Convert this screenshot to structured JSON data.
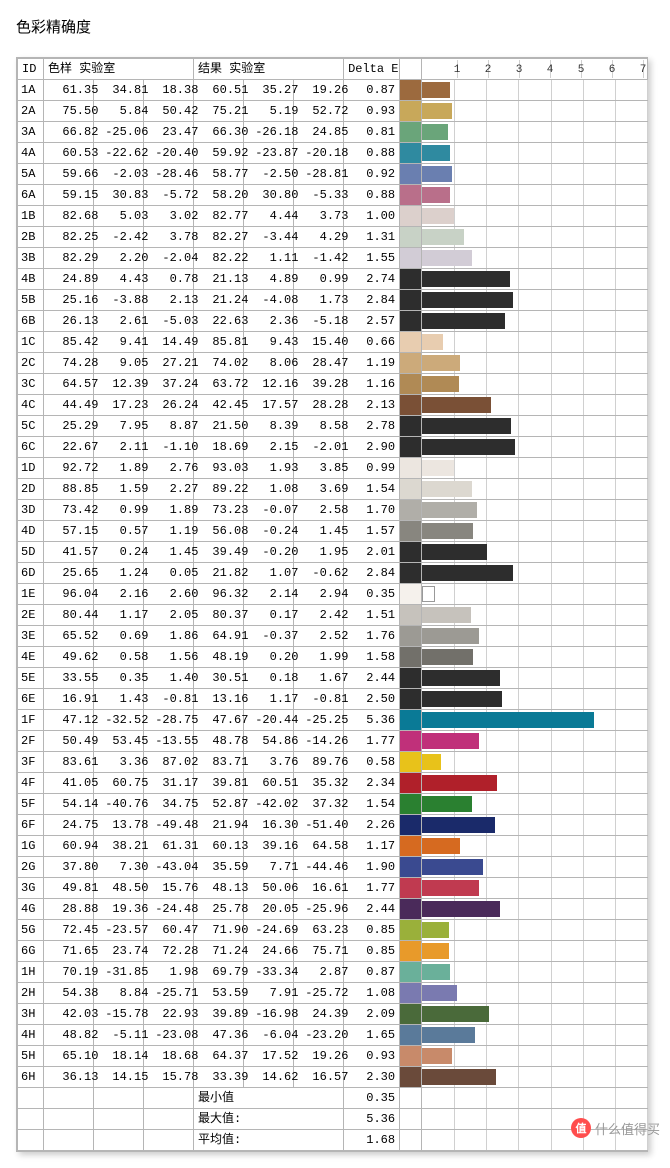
{
  "title": "色彩精确度",
  "headers": {
    "id": "ID",
    "sample": "色样 实验室",
    "result": "结果 实验室",
    "delta": "Delta E"
  },
  "axis": {
    "max": 7,
    "ticks": [
      1,
      2,
      3,
      4,
      5,
      6,
      7
    ]
  },
  "stats": {
    "min_label": "最小值",
    "min_value": 0.35,
    "max_label": "最大值:",
    "max_value": 5.36,
    "avg_label": "平均值:",
    "avg_value": 1.68
  },
  "colors": {
    "dark_bar": "#2d2d2d",
    "border": "#b5b5b5"
  },
  "rows": [
    {
      "id": "1A",
      "s": [
        61.35,
        34.81,
        18.38
      ],
      "r": [
        60.51,
        35.27,
        19.26
      ],
      "d": 0.87,
      "swatch": "#9c6a3e",
      "bar": "#9c6a3e"
    },
    {
      "id": "2A",
      "s": [
        75.5,
        5.84,
        50.42
      ],
      "r": [
        75.21,
        5.19,
        52.72
      ],
      "d": 0.93,
      "swatch": "#c8a85a",
      "bar": "#c8a85a"
    },
    {
      "id": "3A",
      "s": [
        66.82,
        -25.06,
        23.47
      ],
      "r": [
        66.3,
        -26.18,
        24.85
      ],
      "d": 0.81,
      "swatch": "#6aa57a",
      "bar": "#6aa57a"
    },
    {
      "id": "4A",
      "s": [
        60.53,
        -22.62,
        -20.4
      ],
      "r": [
        59.92,
        -23.87,
        -20.18
      ],
      "d": 0.88,
      "swatch": "#2f8aa0",
      "bar": "#2f8aa0"
    },
    {
      "id": "5A",
      "s": [
        59.66,
        -2.03,
        -28.46
      ],
      "r": [
        58.77,
        -2.5,
        -28.81
      ],
      "d": 0.92,
      "swatch": "#6a7fb0",
      "bar": "#6a7fb0"
    },
    {
      "id": "6A",
      "s": [
        59.15,
        30.83,
        -5.72
      ],
      "r": [
        58.2,
        30.8,
        -5.33
      ],
      "d": 0.88,
      "swatch": "#b96f8a",
      "bar": "#b96f8a"
    },
    {
      "id": "1B",
      "s": [
        82.68,
        5.03,
        3.02
      ],
      "r": [
        82.77,
        4.44,
        3.73
      ],
      "d": 1.0,
      "swatch": "#dcd0cc",
      "bar": "#dcd0cc"
    },
    {
      "id": "2B",
      "s": [
        82.25,
        -2.42,
        3.78
      ],
      "r": [
        82.27,
        -3.44,
        4.29
      ],
      "d": 1.31,
      "swatch": "#c8d2c6",
      "bar": "#c8d2c6"
    },
    {
      "id": "3B",
      "s": [
        82.29,
        2.2,
        -2.04
      ],
      "r": [
        82.22,
        1.11,
        -1.42
      ],
      "d": 1.55,
      "swatch": "#d2ccd6",
      "bar": "#d2ccd6"
    },
    {
      "id": "4B",
      "s": [
        24.89,
        4.43,
        0.78
      ],
      "r": [
        21.13,
        4.89,
        0.99
      ],
      "d": 2.74,
      "swatch": "#2d2d2d",
      "bar": "#2d2d2d"
    },
    {
      "id": "5B",
      "s": [
        25.16,
        -3.88,
        2.13
      ],
      "r": [
        21.24,
        -4.08,
        1.73
      ],
      "d": 2.84,
      "swatch": "#2d2d2d",
      "bar": "#2d2d2d"
    },
    {
      "id": "6B",
      "s": [
        26.13,
        2.61,
        -5.03
      ],
      "r": [
        22.63,
        2.36,
        -5.18
      ],
      "d": 2.57,
      "swatch": "#2d2d2d",
      "bar": "#2d2d2d"
    },
    {
      "id": "1C",
      "s": [
        85.42,
        9.41,
        14.49
      ],
      "r": [
        85.81,
        9.43,
        15.4
      ],
      "d": 0.66,
      "swatch": "#e8cdb0",
      "bar": "#e8cdb0"
    },
    {
      "id": "2C",
      "s": [
        74.28,
        9.05,
        27.21
      ],
      "r": [
        74.02,
        8.06,
        28.47
      ],
      "d": 1.19,
      "swatch": "#ccaa7a",
      "bar": "#ccaa7a"
    },
    {
      "id": "3C",
      "s": [
        64.57,
        12.39,
        37.24
      ],
      "r": [
        63.72,
        12.16,
        39.28
      ],
      "d": 1.16,
      "swatch": "#b08a55",
      "bar": "#b08a55"
    },
    {
      "id": "4C",
      "s": [
        44.49,
        17.23,
        26.24
      ],
      "r": [
        42.45,
        17.57,
        28.28
      ],
      "d": 2.13,
      "swatch": "#7a5036",
      "bar": "#7a5036"
    },
    {
      "id": "5C",
      "s": [
        25.29,
        7.95,
        8.87
      ],
      "r": [
        21.5,
        8.39,
        8.58
      ],
      "d": 2.78,
      "swatch": "#2d2d2d",
      "bar": "#2d2d2d"
    },
    {
      "id": "6C",
      "s": [
        22.67,
        2.11,
        -1.1
      ],
      "r": [
        18.69,
        2.15,
        -2.01
      ],
      "d": 2.9,
      "swatch": "#2d2d2d",
      "bar": "#2d2d2d"
    },
    {
      "id": "1D",
      "s": [
        92.72,
        1.89,
        2.76
      ],
      "r": [
        93.03,
        1.93,
        3.85
      ],
      "d": 0.99,
      "swatch": "#ece6e0",
      "bar": "#ece6e0"
    },
    {
      "id": "2D",
      "s": [
        88.85,
        1.59,
        2.27
      ],
      "r": [
        89.22,
        1.08,
        3.69
      ],
      "d": 1.54,
      "swatch": "#dcd8d0",
      "bar": "#dcd8d0"
    },
    {
      "id": "3D",
      "s": [
        73.42,
        0.99,
        1.89
      ],
      "r": [
        73.23,
        -0.07,
        2.58
      ],
      "d": 1.7,
      "swatch": "#b0aea8",
      "bar": "#b0aea8"
    },
    {
      "id": "4D",
      "s": [
        57.15,
        0.57,
        1.19
      ],
      "r": [
        56.08,
        -0.24,
        1.45
      ],
      "d": 1.57,
      "swatch": "#88867f",
      "bar": "#88867f"
    },
    {
      "id": "5D",
      "s": [
        41.57,
        0.24,
        1.45
      ],
      "r": [
        39.49,
        -0.2,
        1.95
      ],
      "d": 2.01,
      "swatch": "#2d2d2d",
      "bar": "#2d2d2d"
    },
    {
      "id": "6D",
      "s": [
        25.65,
        1.24,
        0.05
      ],
      "r": [
        21.82,
        1.07,
        -0.62
      ],
      "d": 2.84,
      "swatch": "#2d2d2d",
      "bar": "#2d2d2d"
    },
    {
      "id": "1E",
      "s": [
        96.04,
        2.16,
        2.6
      ],
      "r": [
        96.32,
        2.14,
        2.94
      ],
      "d": 0.35,
      "swatch": "#f5f1ec",
      "bar": "#ffffff"
    },
    {
      "id": "2E",
      "s": [
        80.44,
        1.17,
        2.05
      ],
      "r": [
        80.37,
        0.17,
        2.42
      ],
      "d": 1.51,
      "swatch": "#c6c2bc",
      "bar": "#c6c2bc"
    },
    {
      "id": "3E",
      "s": [
        65.52,
        0.69,
        1.86
      ],
      "r": [
        64.91,
        -0.37,
        2.52
      ],
      "d": 1.76,
      "swatch": "#9c9a94",
      "bar": "#9c9a94"
    },
    {
      "id": "4E",
      "s": [
        49.62,
        0.58,
        1.56
      ],
      "r": [
        48.19,
        0.2,
        1.99
      ],
      "d": 1.58,
      "swatch": "#72706a",
      "bar": "#72706a"
    },
    {
      "id": "5E",
      "s": [
        33.55,
        0.35,
        1.4
      ],
      "r": [
        30.51,
        0.18,
        1.67
      ],
      "d": 2.44,
      "swatch": "#2d2d2d",
      "bar": "#2d2d2d"
    },
    {
      "id": "6E",
      "s": [
        16.91,
        1.43,
        -0.81
      ],
      "r": [
        13.16,
        1.17,
        -0.81
      ],
      "d": 2.5,
      "swatch": "#2d2d2d",
      "bar": "#2d2d2d"
    },
    {
      "id": "1F",
      "s": [
        47.12,
        -32.52,
        -28.75
      ],
      "r": [
        47.67,
        -20.44,
        -25.25
      ],
      "d": 5.36,
      "swatch": "#0a7a96",
      "bar": "#0a7a96"
    },
    {
      "id": "2F",
      "s": [
        50.49,
        53.45,
        -13.55
      ],
      "r": [
        48.78,
        54.86,
        -14.26
      ],
      "d": 1.77,
      "swatch": "#c0307a",
      "bar": "#c0307a"
    },
    {
      "id": "3F",
      "s": [
        83.61,
        3.36,
        87.02
      ],
      "r": [
        83.71,
        3.76,
        89.76
      ],
      "d": 0.58,
      "swatch": "#e8c21a",
      "bar": "#e8c21a"
    },
    {
      "id": "4F",
      "s": [
        41.05,
        60.75,
        31.17
      ],
      "r": [
        39.81,
        60.51,
        35.32
      ],
      "d": 2.34,
      "swatch": "#b0202a",
      "bar": "#b0202a"
    },
    {
      "id": "5F",
      "s": [
        54.14,
        -40.76,
        34.75
      ],
      "r": [
        52.87,
        -42.02,
        37.32
      ],
      "d": 1.54,
      "swatch": "#2a8030",
      "bar": "#2a8030"
    },
    {
      "id": "6F",
      "s": [
        24.75,
        13.78,
        -49.48
      ],
      "r": [
        21.94,
        16.3,
        -51.4
      ],
      "d": 2.26,
      "swatch": "#1a2a6a",
      "bar": "#1a2a6a"
    },
    {
      "id": "1G",
      "s": [
        60.94,
        38.21,
        61.31
      ],
      "r": [
        60.13,
        39.16,
        64.58
      ],
      "d": 1.17,
      "swatch": "#d66a20",
      "bar": "#d66a20"
    },
    {
      "id": "2G",
      "s": [
        37.8,
        7.3,
        -43.04
      ],
      "r": [
        35.59,
        7.71,
        -44.46
      ],
      "d": 1.9,
      "swatch": "#3a4a90",
      "bar": "#3a4a90"
    },
    {
      "id": "3G",
      "s": [
        49.81,
        48.5,
        15.76
      ],
      "r": [
        48.13,
        50.06,
        16.61
      ],
      "d": 1.77,
      "swatch": "#c03a50",
      "bar": "#c03a50"
    },
    {
      "id": "4G",
      "s": [
        28.88,
        19.36,
        -24.48
      ],
      "r": [
        25.78,
        20.05,
        -25.96
      ],
      "d": 2.44,
      "swatch": "#4a2a5a",
      "bar": "#4a2a5a"
    },
    {
      "id": "5G",
      "s": [
        72.45,
        -23.57,
        60.47
      ],
      "r": [
        71.9,
        -24.69,
        63.23
      ],
      "d": 0.85,
      "swatch": "#9ab03a",
      "bar": "#9ab03a"
    },
    {
      "id": "6G",
      "s": [
        71.65,
        23.74,
        72.28
      ],
      "r": [
        71.24,
        24.66,
        75.71
      ],
      "d": 0.85,
      "swatch": "#e89a2a",
      "bar": "#e89a2a"
    },
    {
      "id": "1H",
      "s": [
        70.19,
        -31.85,
        1.98
      ],
      "r": [
        69.79,
        -33.34,
        2.87
      ],
      "d": 0.87,
      "swatch": "#6ab09a",
      "bar": "#6ab09a"
    },
    {
      "id": "2H",
      "s": [
        54.38,
        8.84,
        -25.71
      ],
      "r": [
        53.59,
        7.91,
        -25.72
      ],
      "d": 1.08,
      "swatch": "#7a7ab0",
      "bar": "#7a7ab0"
    },
    {
      "id": "3H",
      "s": [
        42.03,
        -15.78,
        22.93
      ],
      "r": [
        39.89,
        -16.98,
        24.39
      ],
      "d": 2.09,
      "swatch": "#4a6a3a",
      "bar": "#4a6a3a"
    },
    {
      "id": "4H",
      "s": [
        48.82,
        -5.11,
        -23.08
      ],
      "r": [
        47.36,
        -6.04,
        -23.2
      ],
      "d": 1.65,
      "swatch": "#5a7a9a",
      "bar": "#5a7a9a"
    },
    {
      "id": "5H",
      "s": [
        65.1,
        18.14,
        18.68
      ],
      "r": [
        64.37,
        17.52,
        19.26
      ],
      "d": 0.93,
      "swatch": "#c88a6a",
      "bar": "#c88a6a"
    },
    {
      "id": "6H",
      "s": [
        36.13,
        14.15,
        15.78
      ],
      "r": [
        33.39,
        14.62,
        16.57
      ],
      "d": 2.3,
      "swatch": "#6a4a3a",
      "bar": "#6a4a3a"
    }
  ],
  "watermark": {
    "text": "什么值得买",
    "coin": "值"
  }
}
